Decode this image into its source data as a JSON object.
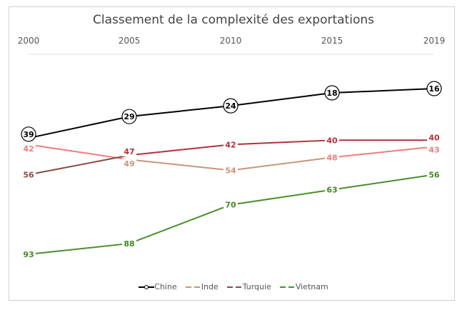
{
  "chart_data": {
    "type": "line",
    "title": "Classement de la complexité des exportations",
    "x": [
      "2000",
      "2005",
      "2010",
      "2015",
      "2019"
    ],
    "y_inverted": true,
    "grid": false,
    "legend_position": "bottom",
    "series": [
      {
        "name": "Chine",
        "values": [
          39,
          29,
          24,
          18,
          16
        ],
        "color": "#000000",
        "segment_colors": [
          "#000000",
          "#000000",
          "#000000",
          "#000000"
        ],
        "label_colors": [
          "#000000",
          "#000000",
          "#000000",
          "#000000",
          "#000000"
        ],
        "marker": "circle"
      },
      {
        "name": "Inde",
        "values": [
          42,
          49,
          54,
          48,
          43
        ],
        "color": "#c8957a",
        "segment_colors": [
          "#f47b7b",
          "#c8957a",
          "#c8957a",
          "#f47b7b"
        ],
        "label_colors": [
          "#f47b7b",
          "#c8957a",
          "#c8957a",
          "#f47b7b",
          "#f47b7b"
        ]
      },
      {
        "name": "Turquie",
        "values": [
          56,
          47,
          42,
          40,
          40
        ],
        "color": "#8b4a44",
        "segment_colors": [
          "#8b4a44",
          "#b3303a",
          "#b3303a",
          "#b3303a"
        ],
        "label_colors": [
          "#8b4a44",
          "#b3303a",
          "#b3303a",
          "#b3303a",
          "#b3303a"
        ]
      },
      {
        "name": "Vietnam",
        "values": [
          93,
          88,
          70,
          63,
          56
        ],
        "color": "#4a8f2a",
        "segment_colors": [
          "#4a8f2a",
          "#4a8f2a",
          "#4a8f2a",
          "#4a8f2a"
        ],
        "label_colors": [
          "#3f8a22",
          "#3f8a22",
          "#3f8a22",
          "#3f8a22",
          "#3f8a22"
        ]
      }
    ]
  }
}
